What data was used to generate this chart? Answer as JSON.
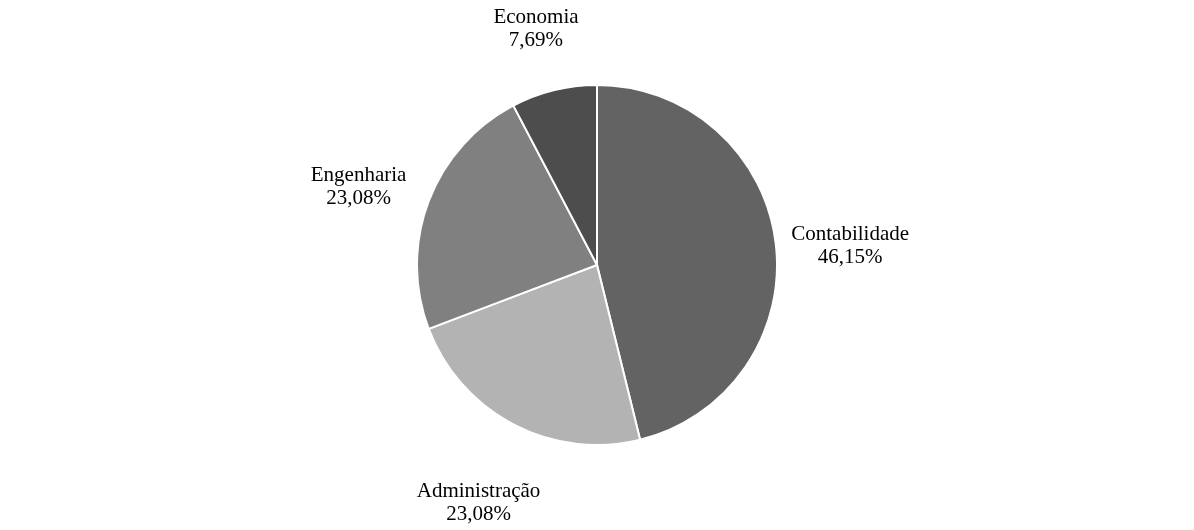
{
  "chart_data": {
    "type": "pie",
    "categories": [
      "Contabilidade",
      "Administração",
      "Engenharia",
      "Economia"
    ],
    "values": [
      46.15,
      23.08,
      23.08,
      7.69
    ],
    "colors": [
      "#636363",
      "#b3b3b3",
      "#808080",
      "#4d4d4d"
    ],
    "value_labels": [
      "46,15%",
      "23,08%",
      "23,08%",
      "7,69%"
    ],
    "legend": false
  }
}
